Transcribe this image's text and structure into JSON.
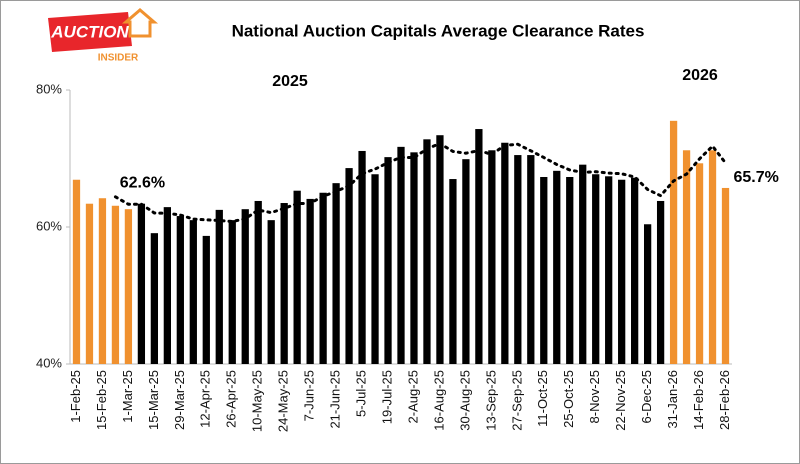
{
  "logo": {
    "line1": "AUCTION",
    "line2": "INSIDER"
  },
  "chart_data": {
    "type": "bar",
    "title": "National Auction Capitals Average Clearance Rates",
    "annotations": [
      "2025",
      "2026"
    ],
    "categories": [
      "1-Feb-25",
      null,
      "15-Feb-25",
      null,
      "1-Mar-25",
      null,
      "15-Mar-25",
      null,
      "29-Mar-25",
      null,
      "12-Apr-25",
      null,
      "26-Apr-25",
      null,
      "10-May-25",
      null,
      "24-May-25",
      null,
      "7-Jun-25",
      null,
      "21-Jun-25",
      null,
      "5-Jul-25",
      null,
      "19-Jul-25",
      null,
      "2-Aug-25",
      null,
      "16-Aug-25",
      null,
      "30-Aug-25",
      null,
      "13-Sep-25",
      null,
      "27-Sep-25",
      null,
      "11-Oct-25",
      null,
      "25-Oct-25",
      null,
      "8-Nov-25",
      null,
      "22-Nov-25",
      null,
      "6-Dec-25",
      null,
      "31-Jan-26",
      null,
      "14-Feb-26",
      null,
      "28-Feb-26"
    ],
    "values": [
      66.9,
      63.4,
      64.2,
      63.1,
      62.6,
      63.4,
      59.1,
      62.9,
      61.6,
      61.0,
      58.7,
      62.5,
      61.0,
      62.6,
      63.8,
      61.0,
      63.5,
      65.3,
      64.1,
      65.0,
      66.4,
      68.6,
      71.1,
      67.7,
      70.2,
      71.7,
      70.9,
      72.8,
      73.4,
      67.0,
      69.9,
      74.3,
      71.2,
      72.3,
      70.5,
      70.5,
      67.3,
      68.2,
      67.3,
      69.1,
      67.7,
      67.4,
      66.9,
      67.2,
      60.4,
      63.8,
      75.5,
      71.2,
      69.3,
      71.2,
      65.7
    ],
    "value_labels": [
      null,
      null,
      null,
      null,
      "62.6%",
      null,
      null,
      null,
      null,
      null,
      null,
      null,
      null,
      null,
      null,
      null,
      null,
      null,
      null,
      null,
      null,
      null,
      null,
      null,
      null,
      null,
      null,
      null,
      null,
      null,
      null,
      null,
      null,
      null,
      null,
      null,
      null,
      null,
      null,
      null,
      null,
      null,
      null,
      null,
      null,
      null,
      null,
      null,
      null,
      null,
      "65.7%"
    ],
    "colors": [
      "#f0912f",
      "#f0912f",
      "#f0912f",
      "#f0912f",
      "#f0912f",
      "#000000",
      "#000000",
      "#000000",
      "#000000",
      "#000000",
      "#000000",
      "#000000",
      "#000000",
      "#000000",
      "#000000",
      "#000000",
      "#000000",
      "#000000",
      "#000000",
      "#000000",
      "#000000",
      "#000000",
      "#000000",
      "#000000",
      "#000000",
      "#000000",
      "#000000",
      "#000000",
      "#000000",
      "#000000",
      "#000000",
      "#000000",
      "#000000",
      "#000000",
      "#000000",
      "#000000",
      "#000000",
      "#000000",
      "#000000",
      "#000000",
      "#000000",
      "#000000",
      "#000000",
      "#000000",
      "#000000",
      "#000000",
      "#f0912f",
      "#f0912f",
      "#f0912f",
      "#f0912f",
      "#f0912f"
    ],
    "ylim": [
      40,
      80
    ],
    "yticks": [
      {
        "value": 40,
        "label": "40%"
      },
      {
        "value": 60,
        "label": "60%"
      },
      {
        "value": 80,
        "label": "80%"
      }
    ],
    "grid": false,
    "trendline": {
      "kind": "moving average",
      "period": 4,
      "color": "#000000"
    }
  }
}
